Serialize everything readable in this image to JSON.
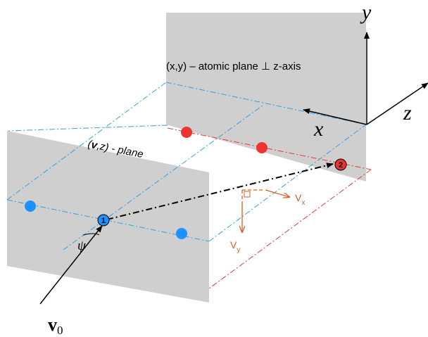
{
  "labels": {
    "atomic_plane": "(x,y) – atomic plane ⊥ z-axis",
    "vz_plane_paren_open": "(",
    "vz_plane_v": "v",
    "vz_plane_rest": ",z) - plane",
    "axis_y": "y",
    "axis_z": "z",
    "axis_x": "x",
    "atom_1": "1",
    "atom_2": "2",
    "vx_main": "V",
    "vx_sub": "x",
    "vy_main": "V",
    "vy_sub": "y",
    "psi": "ψ",
    "v0_main": "v",
    "v0_sub": "0"
  },
  "colors": {
    "plane_fill": "#cfcfcf",
    "blue": "#1e90ff",
    "red": "#ee3333",
    "dashed_blue": "#3aa0dc",
    "dashed_red": "#e03a3a",
    "velocity_orange": "#d2632a",
    "black": "#000000"
  }
}
